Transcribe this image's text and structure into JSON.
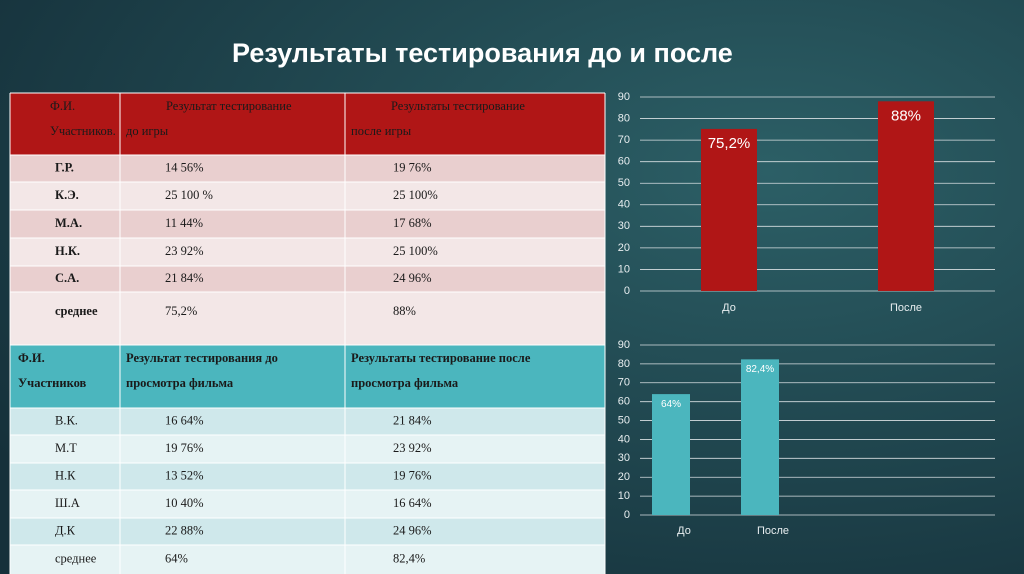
{
  "title": "Результаты тестирования до и после",
  "tables": [
    {
      "header": [
        [
          "Ф.И.",
          "Участников."
        ],
        [
          "Результат тестирование",
          "до игры"
        ],
        [
          "Результаты тестирование",
          "после игры"
        ]
      ],
      "rows": [
        [
          "Г.Р.",
          "14 56%",
          "19 76%"
        ],
        [
          "К.Э.",
          "25 100 %",
          "25 100%"
        ],
        [
          "М.А.",
          "11 44%",
          "17 68%"
        ],
        [
          "Н.К.",
          "23 92%",
          "25 100%"
        ],
        [
          "С.А.",
          "21 84%",
          "24 96%"
        ],
        [
          "среднее",
          "75,2%",
          "88%"
        ]
      ]
    },
    {
      "header": [
        [
          "Ф.И.",
          "Участников"
        ],
        [
          "Результат тестирования до",
          "просмотра фильма"
        ],
        [
          "Результаты тестирование после",
          "просмотра фильма"
        ]
      ],
      "rows": [
        [
          "В.К.",
          "16 64%",
          "21 84%"
        ],
        [
          "М.Т",
          "19 76%",
          "23 92%"
        ],
        [
          "Н.К",
          "13 52%",
          "19 76%"
        ],
        [
          "Ш.А",
          "10 40%",
          "16 64%"
        ],
        [
          "Д.К",
          "22 88%",
          "24 96%"
        ],
        [
          "среднее",
          "64%",
          "82,4%"
        ]
      ]
    }
  ],
  "chart_data": [
    {
      "type": "bar",
      "categories": [
        "До",
        "После"
      ],
      "values": [
        75.2,
        88
      ],
      "value_labels": [
        "75,2%",
        "88%"
      ],
      "color": "#b01616",
      "ylim": [
        0,
        90
      ],
      "yticks": [
        0,
        10,
        20,
        30,
        40,
        50,
        60,
        70,
        80,
        90
      ],
      "grid": true
    },
    {
      "type": "bar",
      "categories": [
        "До",
        "После"
      ],
      "values": [
        64,
        82.4
      ],
      "value_labels": [
        "64%",
        "82,4%"
      ],
      "color": "#4bb6be",
      "ylim": [
        0,
        90
      ],
      "yticks": [
        0,
        10,
        20,
        30,
        40,
        50,
        60,
        70,
        80,
        90
      ],
      "grid": true
    }
  ]
}
